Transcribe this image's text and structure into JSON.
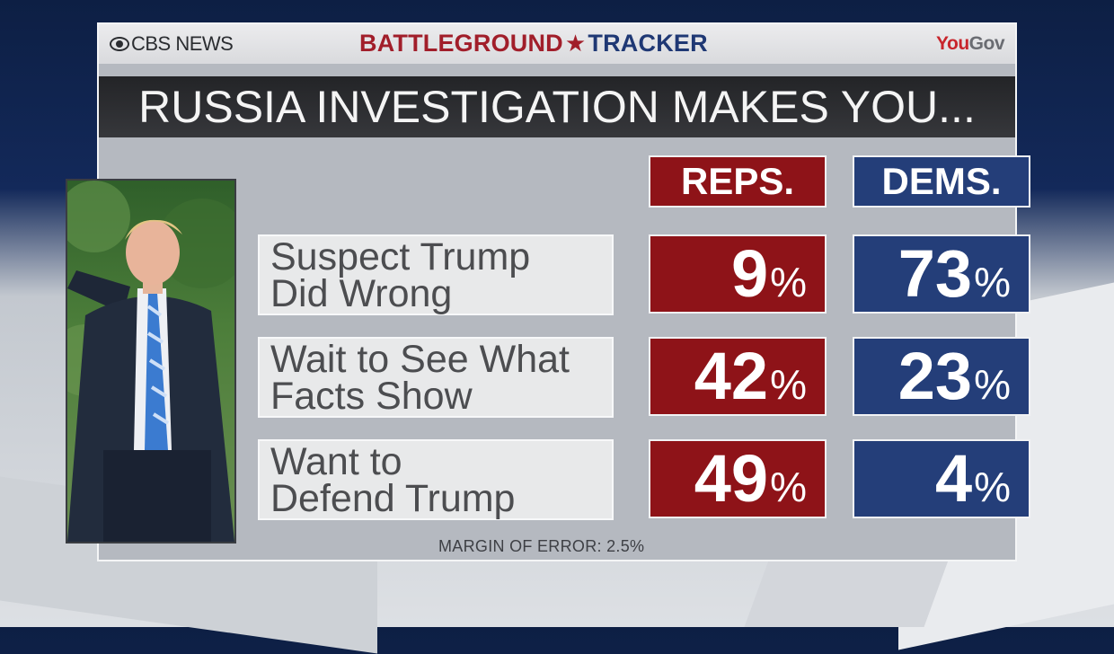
{
  "branding": {
    "cbs": "CBS NEWS",
    "tracker_part1": "BATTLEGROUND",
    "tracker_part2": "TRACKER",
    "yougov_a": "You",
    "yougov_b": "Gov"
  },
  "title": "RUSSIA INVESTIGATION MAKES YOU...",
  "footer": "MARGIN OF ERROR: 2.5%",
  "colors": {
    "reps": "#8e1318",
    "dems": "#243e79",
    "banner": "#2a2b2e"
  },
  "chart_data": {
    "type": "table",
    "title": "RUSSIA INVESTIGATION MAKES YOU...",
    "columns": [
      "REPS.",
      "DEMS."
    ],
    "rows": [
      {
        "line1": "Suspect Trump",
        "line2": "Did Wrong",
        "values": [
          9,
          73
        ]
      },
      {
        "line1": "Wait to See What",
        "line2": "Facts Show",
        "values": [
          42,
          23
        ]
      },
      {
        "line1": "Want to",
        "line2": "Defend Trump",
        "values": [
          49,
          4
        ]
      }
    ],
    "unit": "%"
  }
}
